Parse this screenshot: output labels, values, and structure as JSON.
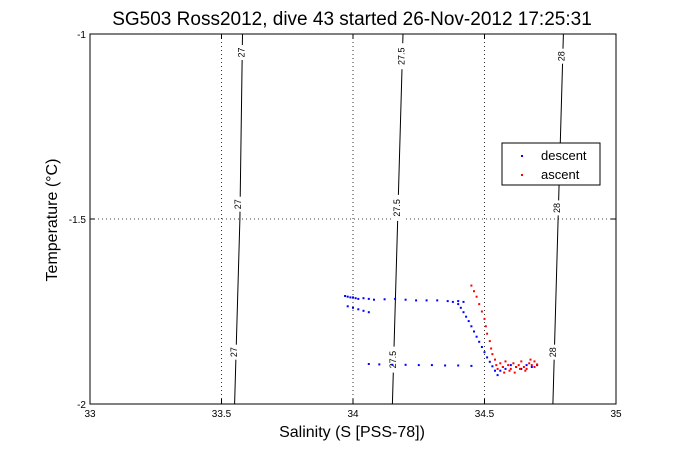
{
  "chart_data": {
    "type": "scatter",
    "title": "SG503 Ross2012, dive 43 started 26-Nov-2012 17:25:31",
    "xlabel": "Salinity (S [PSS-78])",
    "ylabel": "Temperature (°C)",
    "xlim": [
      33,
      35
    ],
    "ylim": [
      -2,
      -1
    ],
    "x_ticks": [
      33,
      33.5,
      34,
      34.5,
      35
    ],
    "x_tick_labels": [
      "33",
      "33.5",
      "34",
      "34.5",
      "35"
    ],
    "y_ticks": [
      -2,
      -1.5,
      -1
    ],
    "y_tick_labels": [
      "-2",
      "-1.5",
      "-1"
    ],
    "grid": true,
    "legend_position": "right",
    "density_contours": [
      {
        "label": "27",
        "points": [
          [
            33.55,
            -2.0
          ],
          [
            33.57,
            -1.5
          ],
          [
            33.58,
            -1.0
          ]
        ],
        "label_positions": [
          [
            33.55,
            -1.86
          ],
          [
            33.565,
            -1.46
          ],
          [
            33.578,
            -1.05
          ]
        ]
      },
      {
        "label": "27.5",
        "points": [
          [
            34.15,
            -2.0
          ],
          [
            34.17,
            -1.5
          ],
          [
            34.19,
            -1.0
          ]
        ],
        "label_positions": [
          [
            34.155,
            -1.88
          ],
          [
            34.17,
            -1.47
          ],
          [
            34.187,
            -1.06
          ]
        ]
      },
      {
        "label": "28",
        "points": [
          [
            34.76,
            -2.0
          ],
          [
            34.78,
            -1.5
          ],
          [
            34.8,
            -1.0
          ]
        ],
        "label_positions": [
          [
            34.762,
            -1.86
          ],
          [
            34.777,
            -1.47
          ],
          [
            34.795,
            -1.06
          ]
        ]
      }
    ],
    "series": [
      {
        "name": "descent",
        "color": "#0000ff",
        "points": [
          [
            33.97,
            -1.708
          ],
          [
            33.98,
            -1.71
          ],
          [
            33.99,
            -1.712
          ],
          [
            34.0,
            -1.712
          ],
          [
            34.01,
            -1.714
          ],
          [
            34.02,
            -1.716
          ],
          [
            34.04,
            -1.714
          ],
          [
            34.06,
            -1.716
          ],
          [
            34.08,
            -1.718
          ],
          [
            34.12,
            -1.717
          ],
          [
            34.16,
            -1.716
          ],
          [
            34.2,
            -1.718
          ],
          [
            34.24,
            -1.72
          ],
          [
            34.28,
            -1.72
          ],
          [
            34.32,
            -1.72
          ],
          [
            34.36,
            -1.722
          ],
          [
            34.38,
            -1.724
          ],
          [
            34.4,
            -1.722
          ],
          [
            34.42,
            -1.724
          ],
          [
            33.98,
            -1.736
          ],
          [
            34.0,
            -1.74
          ],
          [
            34.02,
            -1.744
          ],
          [
            34.04,
            -1.748
          ],
          [
            34.06,
            -1.752
          ],
          [
            34.4,
            -1.73
          ],
          [
            34.41,
            -1.74
          ],
          [
            34.42,
            -1.752
          ],
          [
            34.43,
            -1.764
          ],
          [
            34.44,
            -1.776
          ],
          [
            34.45,
            -1.79
          ],
          [
            34.46,
            -1.804
          ],
          [
            34.47,
            -1.818
          ],
          [
            34.48,
            -1.832
          ],
          [
            34.49,
            -1.846
          ],
          [
            34.5,
            -1.86
          ],
          [
            34.51,
            -1.874
          ],
          [
            34.52,
            -1.886
          ],
          [
            34.53,
            -1.898
          ],
          [
            34.54,
            -1.91
          ],
          [
            34.55,
            -1.922
          ],
          [
            34.56,
            -1.91
          ],
          [
            34.57,
            -1.9
          ],
          [
            34.58,
            -1.905
          ],
          [
            34.6,
            -1.895
          ],
          [
            34.62,
            -1.9
          ],
          [
            34.64,
            -1.905
          ],
          [
            34.66,
            -1.895
          ],
          [
            34.68,
            -1.9
          ],
          [
            34.7,
            -1.895
          ],
          [
            34.06,
            -1.892
          ],
          [
            34.1,
            -1.893
          ],
          [
            34.15,
            -1.894
          ],
          [
            34.2,
            -1.894
          ],
          [
            34.25,
            -1.895
          ],
          [
            34.3,
            -1.895
          ],
          [
            34.35,
            -1.896
          ],
          [
            34.4,
            -1.896
          ],
          [
            34.45,
            -1.897
          ]
        ]
      },
      {
        "name": "ascent",
        "color": "#ff0000",
        "points": [
          [
            34.45,
            -1.68
          ],
          [
            34.46,
            -1.695
          ],
          [
            34.47,
            -1.71
          ],
          [
            34.48,
            -1.73
          ],
          [
            34.49,
            -1.75
          ],
          [
            34.5,
            -1.77
          ],
          [
            34.505,
            -1.79
          ],
          [
            34.51,
            -1.81
          ],
          [
            34.52,
            -1.83
          ],
          [
            34.525,
            -1.85
          ],
          [
            34.53,
            -1.865
          ],
          [
            34.54,
            -1.88
          ],
          [
            34.545,
            -1.895
          ],
          [
            34.55,
            -1.905
          ],
          [
            34.56,
            -1.89
          ],
          [
            34.57,
            -1.9
          ],
          [
            34.58,
            -1.885
          ],
          [
            34.59,
            -1.895
          ],
          [
            34.6,
            -1.905
          ],
          [
            34.61,
            -1.89
          ],
          [
            34.62,
            -1.9
          ],
          [
            34.63,
            -1.895
          ],
          [
            34.64,
            -1.885
          ],
          [
            34.65,
            -1.9
          ],
          [
            34.66,
            -1.905
          ],
          [
            34.67,
            -1.89
          ],
          [
            34.68,
            -1.895
          ],
          [
            34.69,
            -1.9
          ],
          [
            34.7,
            -1.893
          ],
          [
            34.575,
            -1.915
          ],
          [
            34.595,
            -1.91
          ],
          [
            34.615,
            -1.915
          ],
          [
            34.635,
            -1.905
          ],
          [
            34.655,
            -1.91
          ],
          [
            34.675,
            -1.88
          ],
          [
            34.69,
            -1.885
          ]
        ]
      }
    ]
  }
}
